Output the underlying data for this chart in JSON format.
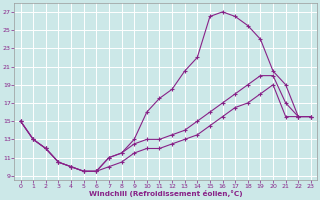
{
  "xlabel": "Windchill (Refroidissement éolien,°C)",
  "xlim": [
    -0.5,
    23.5
  ],
  "ylim": [
    8.5,
    28
  ],
  "xticks": [
    0,
    1,
    2,
    3,
    4,
    5,
    6,
    7,
    8,
    9,
    10,
    11,
    12,
    13,
    14,
    15,
    16,
    17,
    18,
    19,
    20,
    21,
    22,
    23
  ],
  "yticks": [
    9,
    11,
    13,
    15,
    17,
    19,
    21,
    23,
    25,
    27
  ],
  "bg_color": "#cce8e8",
  "grid_color": "#b8d8d8",
  "line_color": "#882288",
  "curve1_x": [
    0,
    1,
    2,
    3,
    4,
    5,
    6,
    7,
    8,
    9,
    10,
    11,
    12,
    13,
    14,
    15,
    16,
    17,
    18,
    19,
    20,
    21,
    22,
    23
  ],
  "curve1_y": [
    15,
    13,
    12,
    10.5,
    10,
    9.5,
    9.5,
    11,
    11.5,
    13,
    16,
    17.5,
    18.5,
    20.5,
    22,
    26.5,
    27,
    26.5,
    25.5,
    24,
    20.5,
    19,
    15.5,
    15.5
  ],
  "curve2_x": [
    0,
    1,
    2,
    3,
    4,
    5,
    6,
    7,
    8,
    9,
    10,
    11,
    12,
    13,
    14,
    15,
    16,
    17,
    18,
    19,
    20,
    21,
    22,
    23
  ],
  "curve2_y": [
    15,
    13,
    12,
    10.5,
    10,
    9.5,
    9.5,
    11,
    11.5,
    12.5,
    13,
    13,
    13.5,
    14,
    15,
    16,
    17,
    18,
    19,
    20,
    20,
    17,
    15.5,
    15.5
  ],
  "curve3_x": [
    0,
    1,
    2,
    3,
    4,
    5,
    6,
    7,
    8,
    9,
    10,
    11,
    12,
    13,
    14,
    15,
    16,
    17,
    18,
    19,
    20,
    21,
    22,
    23
  ],
  "curve3_y": [
    15,
    13,
    12,
    10.5,
    10,
    9.5,
    9.5,
    10,
    10.5,
    11.5,
    12,
    12,
    12.5,
    13,
    13.5,
    14.5,
    15.5,
    16.5,
    17,
    18,
    19,
    15.5,
    15.5,
    15.5
  ],
  "figsize": [
    3.2,
    2.0
  ],
  "dpi": 100
}
